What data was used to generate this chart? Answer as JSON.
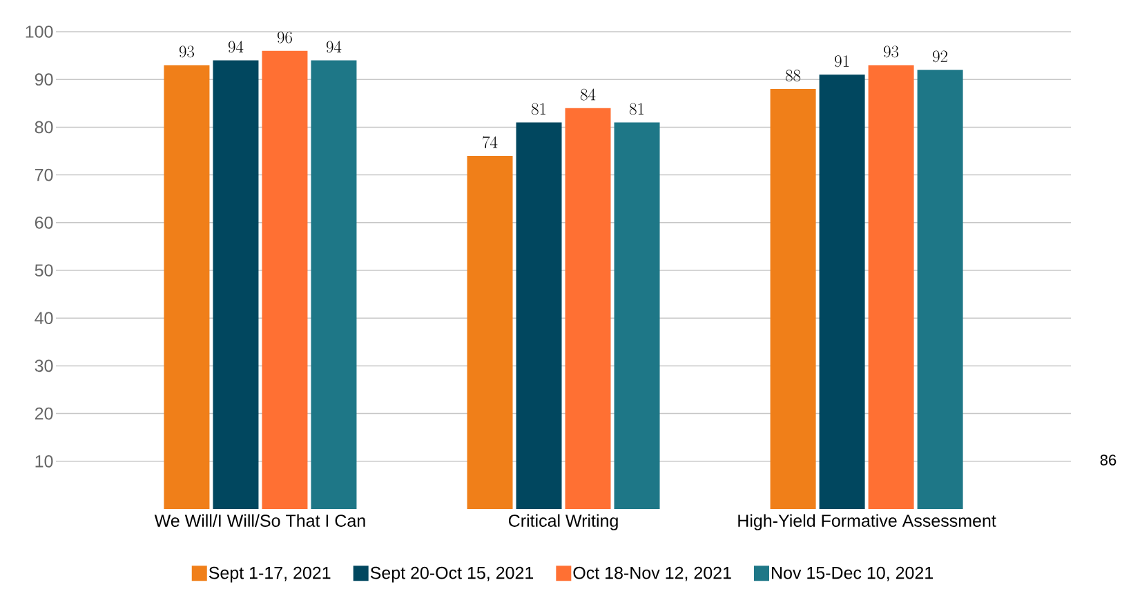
{
  "chart_data": {
    "type": "bar",
    "categories": [
      "We Will/I Will/So That I Can",
      "Critical Writing",
      "High-Yield Formative Assessment"
    ],
    "series": [
      {
        "name": "Sept 1-17, 2021",
        "color": "#f07f19",
        "values": [
          93,
          74,
          88
        ]
      },
      {
        "name": "Sept 20-Oct 15, 2021",
        "color": "#01475f",
        "values": [
          94,
          81,
          91
        ]
      },
      {
        "name": "Oct 18-Nov 12, 2021",
        "color": "#ff7033",
        "values": [
          96,
          84,
          93
        ]
      },
      {
        "name": "Nov 15-Dec 10, 2021",
        "color": "#1e7787",
        "values": [
          94,
          81,
          92
        ]
      }
    ],
    "ylim": [
      0,
      100
    ],
    "yticks": [
      10,
      20,
      30,
      40,
      50,
      60,
      70,
      80,
      90,
      100
    ],
    "grid": "y",
    "legend": "bottom",
    "data_labels": true,
    "annotations": [
      "86"
    ]
  }
}
